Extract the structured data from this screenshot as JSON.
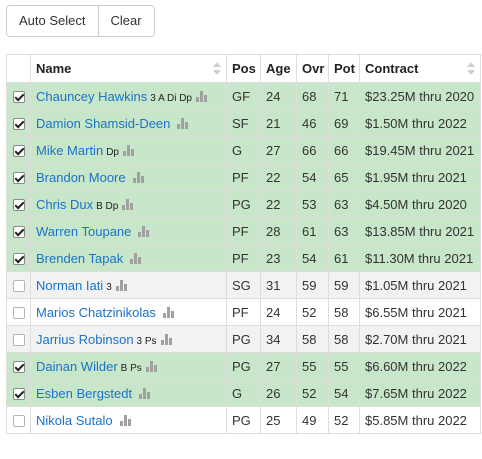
{
  "toolbar": {
    "auto_select_label": "Auto Select",
    "clear_label": "Clear"
  },
  "table": {
    "columns": [
      "",
      "Name",
      "Pos",
      "Age",
      "Ovr",
      "Pot",
      "Contract"
    ],
    "rows": [
      {
        "selected": true,
        "name": "Chauncey Hawkins",
        "skills": "3 A Di Dp",
        "pos": "GF",
        "age": "24",
        "ovr": "68",
        "pot": "71",
        "contract": "$23.25M thru 2020"
      },
      {
        "selected": true,
        "name": "Damion Shamsid-Deen",
        "skills": "",
        "pos": "SF",
        "age": "21",
        "ovr": "46",
        "pot": "69",
        "contract": "$1.50M thru 2022"
      },
      {
        "selected": true,
        "name": "Mike Martin",
        "skills": "Dp",
        "pos": "G",
        "age": "27",
        "ovr": "66",
        "pot": "66",
        "contract": "$19.45M thru 2021"
      },
      {
        "selected": true,
        "name": "Brandon Moore",
        "skills": "",
        "pos": "PF",
        "age": "22",
        "ovr": "54",
        "pot": "65",
        "contract": "$1.95M thru 2021"
      },
      {
        "selected": true,
        "name": "Chris Dux",
        "skills": "B Dp",
        "pos": "PG",
        "age": "22",
        "ovr": "53",
        "pot": "63",
        "contract": "$4.50M thru 2020"
      },
      {
        "selected": true,
        "name": "Warren Toupane",
        "skills": "",
        "pos": "PF",
        "age": "28",
        "ovr": "61",
        "pot": "63",
        "contract": "$13.85M thru 2021"
      },
      {
        "selected": true,
        "name": "Brenden Tapak",
        "skills": "",
        "pos": "PF",
        "age": "23",
        "ovr": "54",
        "pot": "61",
        "contract": "$11.30M thru 2021"
      },
      {
        "selected": false,
        "name": "Norman Iati",
        "skills": "3",
        "pos": "SG",
        "age": "31",
        "ovr": "59",
        "pot": "59",
        "contract": "$1.05M thru 2021"
      },
      {
        "selected": false,
        "name": "Marios Chatzinikolas",
        "skills": "",
        "pos": "PF",
        "age": "24",
        "ovr": "52",
        "pot": "58",
        "contract": "$6.55M thru 2021"
      },
      {
        "selected": false,
        "name": "Jarrius Robinson",
        "skills": "3 Ps",
        "pos": "PG",
        "age": "34",
        "ovr": "58",
        "pot": "58",
        "contract": "$2.70M thru 2021"
      },
      {
        "selected": true,
        "name": "Dainan Wilder",
        "skills": "B Ps",
        "pos": "PG",
        "age": "27",
        "ovr": "55",
        "pot": "55",
        "contract": "$6.60M thru 2022"
      },
      {
        "selected": true,
        "name": "Esben Bergstedt",
        "skills": "",
        "pos": "G",
        "age": "26",
        "ovr": "52",
        "pot": "54",
        "contract": "$7.65M thru 2022"
      },
      {
        "selected": false,
        "name": "Nikola Sutalo",
        "skills": "",
        "pos": "PG",
        "age": "25",
        "ovr": "49",
        "pot": "52",
        "contract": "$5.85M thru 2022"
      }
    ]
  },
  "icons": {
    "sort": "sort-both-icon",
    "stats": "bar-chart-icon",
    "check": "checkmark-icon"
  },
  "colors": {
    "selected_row": "#c8e6c9",
    "link": "#1a73c8"
  }
}
